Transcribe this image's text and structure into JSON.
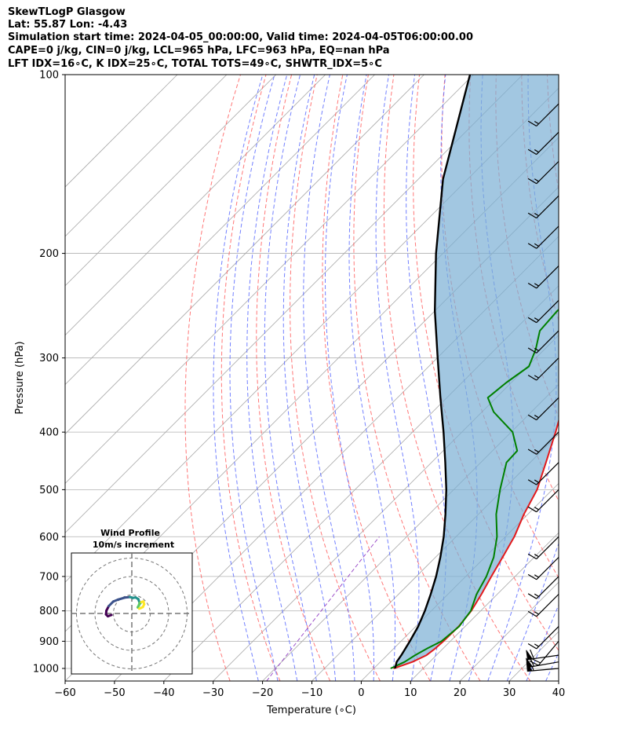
{
  "header": {
    "line1": "SkewTLogP Glasgow",
    "line2": "Lat: 55.87   Lon: -4.43",
    "line3": "Simulation start time: 2024-04-05_00:00:00, Valid time: 2024-04-05T06:00:00.00",
    "line4": "CAPE=0 j/kg, CIN=0 j/kg, LCL=965 hPa, LFC=963 hPa, EQ=nan hPa",
    "line5": "LFT IDX=16∘C, K IDX=25∘C, TOTAL TOTS=49∘C, SHWTR_IDX=5∘C"
  },
  "chart_data": {
    "type": "line",
    "subtype": "skew-t log-p diagram",
    "xlabel": "Temperature (∘C)",
    "ylabel": "Pressure (hPa)",
    "xlim": [
      -60,
      40
    ],
    "ylim": [
      1050,
      100
    ],
    "y_scale": "log",
    "x_ticks": [
      -60,
      -50,
      -40,
      -30,
      -20,
      -10,
      0,
      10,
      20,
      30,
      40
    ],
    "y_ticks": [
      1000,
      900,
      800,
      700,
      600,
      500,
      400,
      300,
      200,
      100
    ],
    "grid": true,
    "series": [
      {
        "role": "temperature",
        "color": "#e31a1c",
        "points": [
          [
            1000,
            4.0
          ],
          [
            975,
            6.5
          ],
          [
            950,
            8.0
          ],
          [
            925,
            8.4
          ],
          [
            900,
            8.6
          ],
          [
            850,
            8.7
          ],
          [
            800,
            8.1
          ],
          [
            750,
            6.8
          ],
          [
            700,
            5.2
          ],
          [
            650,
            3.6
          ],
          [
            600,
            1.8
          ],
          [
            550,
            -0.8
          ],
          [
            500,
            -3.1
          ],
          [
            450,
            -6.8
          ],
          [
            400,
            -11.0
          ],
          [
            350,
            -16.0
          ],
          [
            300,
            -21.6
          ],
          [
            275,
            -24.7
          ],
          [
            260,
            -24.4
          ],
          [
            245,
            -22.1
          ],
          [
            230,
            -20.0
          ],
          [
            215,
            -18.3
          ],
          [
            200,
            -16.5
          ],
          [
            185,
            -15.7
          ],
          [
            170,
            -15.7
          ],
          [
            155,
            -16.0
          ],
          [
            140,
            -16.3
          ],
          [
            125,
            -16.2
          ],
          [
            115,
            -15.8
          ],
          [
            100,
            -14.8
          ]
        ]
      },
      {
        "role": "dewpoint",
        "color": "#008000",
        "points": [
          [
            1000,
            3.4
          ],
          [
            975,
            4.9
          ],
          [
            950,
            5.7
          ],
          [
            925,
            6.8
          ],
          [
            900,
            8.2
          ],
          [
            850,
            8.8
          ],
          [
            800,
            8.0
          ],
          [
            750,
            5.8
          ],
          [
            700,
            4.2
          ],
          [
            650,
            1.8
          ],
          [
            600,
            -1.7
          ],
          [
            550,
            -6.4
          ],
          [
            500,
            -10.6
          ],
          [
            450,
            -14.8
          ],
          [
            430,
            -15.0
          ],
          [
            400,
            -19.7
          ],
          [
            370,
            -27.6
          ],
          [
            350,
            -31.7
          ],
          [
            330,
            -31.0
          ],
          [
            310,
            -29.7
          ],
          [
            290,
            -31.8
          ],
          [
            270,
            -34.7
          ],
          [
            250,
            -35.2
          ],
          [
            235,
            -34.5
          ],
          [
            218,
            -36.0
          ],
          [
            205,
            -38.0
          ],
          [
            190,
            -43.0
          ],
          [
            175,
            -40.9
          ],
          [
            150,
            -38.7
          ],
          [
            125,
            -36.8
          ],
          [
            100,
            -35.8
          ]
        ]
      },
      {
        "role": "parcel",
        "color": "#000000",
        "points": [
          [
            1000,
            4.3
          ],
          [
            975,
            3.3
          ],
          [
            950,
            2.9
          ],
          [
            900,
            1.8
          ],
          [
            850,
            0.5
          ],
          [
            800,
            -1.3
          ],
          [
            750,
            -3.5
          ],
          [
            700,
            -6.0
          ],
          [
            650,
            -9.0
          ],
          [
            600,
            -12.5
          ],
          [
            550,
            -16.7
          ],
          [
            500,
            -21.5
          ],
          [
            450,
            -27.2
          ],
          [
            400,
            -33.7
          ],
          [
            350,
            -41.3
          ],
          [
            300,
            -49.9
          ],
          [
            250,
            -60.0
          ],
          [
            200,
            -71.4
          ],
          [
            150,
            -85.0
          ],
          [
            100,
            -100.7
          ]
        ]
      }
    ],
    "shaded_area": {
      "description": "between parcel profile and temperature profile",
      "color": "#7bafd4"
    },
    "reference_lines": {
      "isotherms_color": "#a8a8a8",
      "dry_adiabats_color": "#ff5f5f",
      "moist_adiabats_color": "#5a6bff",
      "mixing_ratio_color": "#9a4dc8"
    },
    "wind_barbs": {
      "units": "kt",
      "levels": [
        {
          "p": 1000,
          "speed": 55,
          "dir": 265
        },
        {
          "p": 975,
          "speed": 58,
          "dir": 260
        },
        {
          "p": 950,
          "speed": 60,
          "dir": 262
        },
        {
          "p": 900,
          "speed": 20,
          "dir": 220
        },
        {
          "p": 850,
          "speed": 15,
          "dir": 225
        },
        {
          "p": 750,
          "speed": 15,
          "dir": 225
        },
        {
          "p": 700,
          "speed": 15,
          "dir": 225
        },
        {
          "p": 650,
          "speed": 15,
          "dir": 225
        },
        {
          "p": 600,
          "speed": 15,
          "dir": 225
        },
        {
          "p": 500,
          "speed": 15,
          "dir": 225
        },
        {
          "p": 450,
          "speed": 15,
          "dir": 225
        },
        {
          "p": 400,
          "speed": 15,
          "dir": 225
        },
        {
          "p": 350,
          "speed": 15,
          "dir": 225
        },
        {
          "p": 300,
          "speed": 15,
          "dir": 225
        },
        {
          "p": 270,
          "speed": 15,
          "dir": 225
        },
        {
          "p": 240,
          "speed": 15,
          "dir": 225
        },
        {
          "p": 210,
          "speed": 15,
          "dir": 225
        },
        {
          "p": 180,
          "speed": 15,
          "dir": 225
        },
        {
          "p": 160,
          "speed": 15,
          "dir": 225
        },
        {
          "p": 140,
          "speed": 15,
          "dir": 225
        },
        {
          "p": 125,
          "speed": 15,
          "dir": 225
        },
        {
          "p": 112,
          "speed": 15,
          "dir": 225
        }
      ]
    },
    "hodograph": {
      "title": "Wind Profile",
      "subtitle": "10m/s increment",
      "rings_ms": [
        10,
        20,
        30
      ],
      "colormap": [
        "#440154",
        "#3b528b",
        "#21918c",
        "#5ec962",
        "#fde725"
      ],
      "trace_uv_ms": [
        [
          -11.0,
          -0.8
        ],
        [
          -13.0,
          -1.5
        ],
        [
          -14.0,
          -0.5
        ],
        [
          -13.8,
          1.5
        ],
        [
          -12.5,
          4.0
        ],
        [
          -10.0,
          6.5
        ],
        [
          -7.5,
          7.5
        ],
        [
          -3.8,
          8.6
        ],
        [
          -1.0,
          8.9
        ],
        [
          0.5,
          8.4
        ],
        [
          2.0,
          8.7
        ],
        [
          3.5,
          7.8
        ],
        [
          4.2,
          5.8
        ],
        [
          3.8,
          4.2
        ],
        [
          3.2,
          3.3
        ],
        [
          4.0,
          4.8
        ],
        [
          5.2,
          6.2
        ],
        [
          6.3,
          6.5
        ],
        [
          6.7,
          5.0
        ],
        [
          6.0,
          3.5
        ],
        [
          5.0,
          3.0
        ],
        [
          4.0,
          2.6
        ]
      ]
    }
  }
}
